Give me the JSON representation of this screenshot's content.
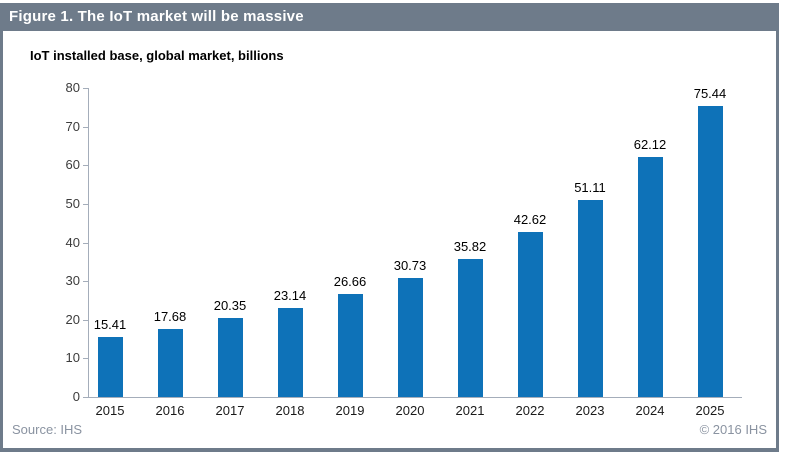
{
  "header": {
    "title": "Figure 1. The IoT market will be massive"
  },
  "footer": {
    "source": "Source: IHS",
    "copyright": "© 2016 IHS"
  },
  "colors": {
    "header_bg": "#6e7b8a",
    "panel_border": "#6e7b8a",
    "bar": "#0e72b8",
    "axis": "#a4adba",
    "muted_text": "#8a93a1"
  },
  "chart_data": {
    "type": "bar",
    "title": "IoT installed base, global market, billions",
    "categories": [
      "2015",
      "2016",
      "2017",
      "2018",
      "2019",
      "2020",
      "2021",
      "2022",
      "2023",
      "2024",
      "2025"
    ],
    "values": [
      15.41,
      17.68,
      20.35,
      23.14,
      26.66,
      30.73,
      35.82,
      42.62,
      51.11,
      62.12,
      75.44
    ],
    "xlabel": "",
    "ylabel": "",
    "ylim": [
      0,
      80
    ],
    "ytick_step": 10,
    "grid": false,
    "legend": null,
    "data_labels": true
  }
}
